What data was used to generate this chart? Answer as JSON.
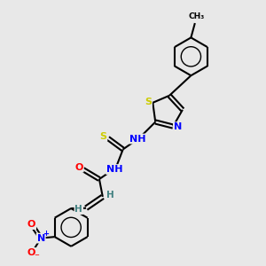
{
  "background_color": "#e8e8e8",
  "bond_color": "#000000",
  "atom_colors": {
    "S": "#cccc00",
    "N": "#0000ff",
    "O": "#ff0000",
    "C": "#000000",
    "H": "#408080"
  },
  "figsize": [
    3.0,
    3.0
  ],
  "dpi": 100,
  "xlim": [
    0,
    10
  ],
  "ylim": [
    0,
    10
  ]
}
